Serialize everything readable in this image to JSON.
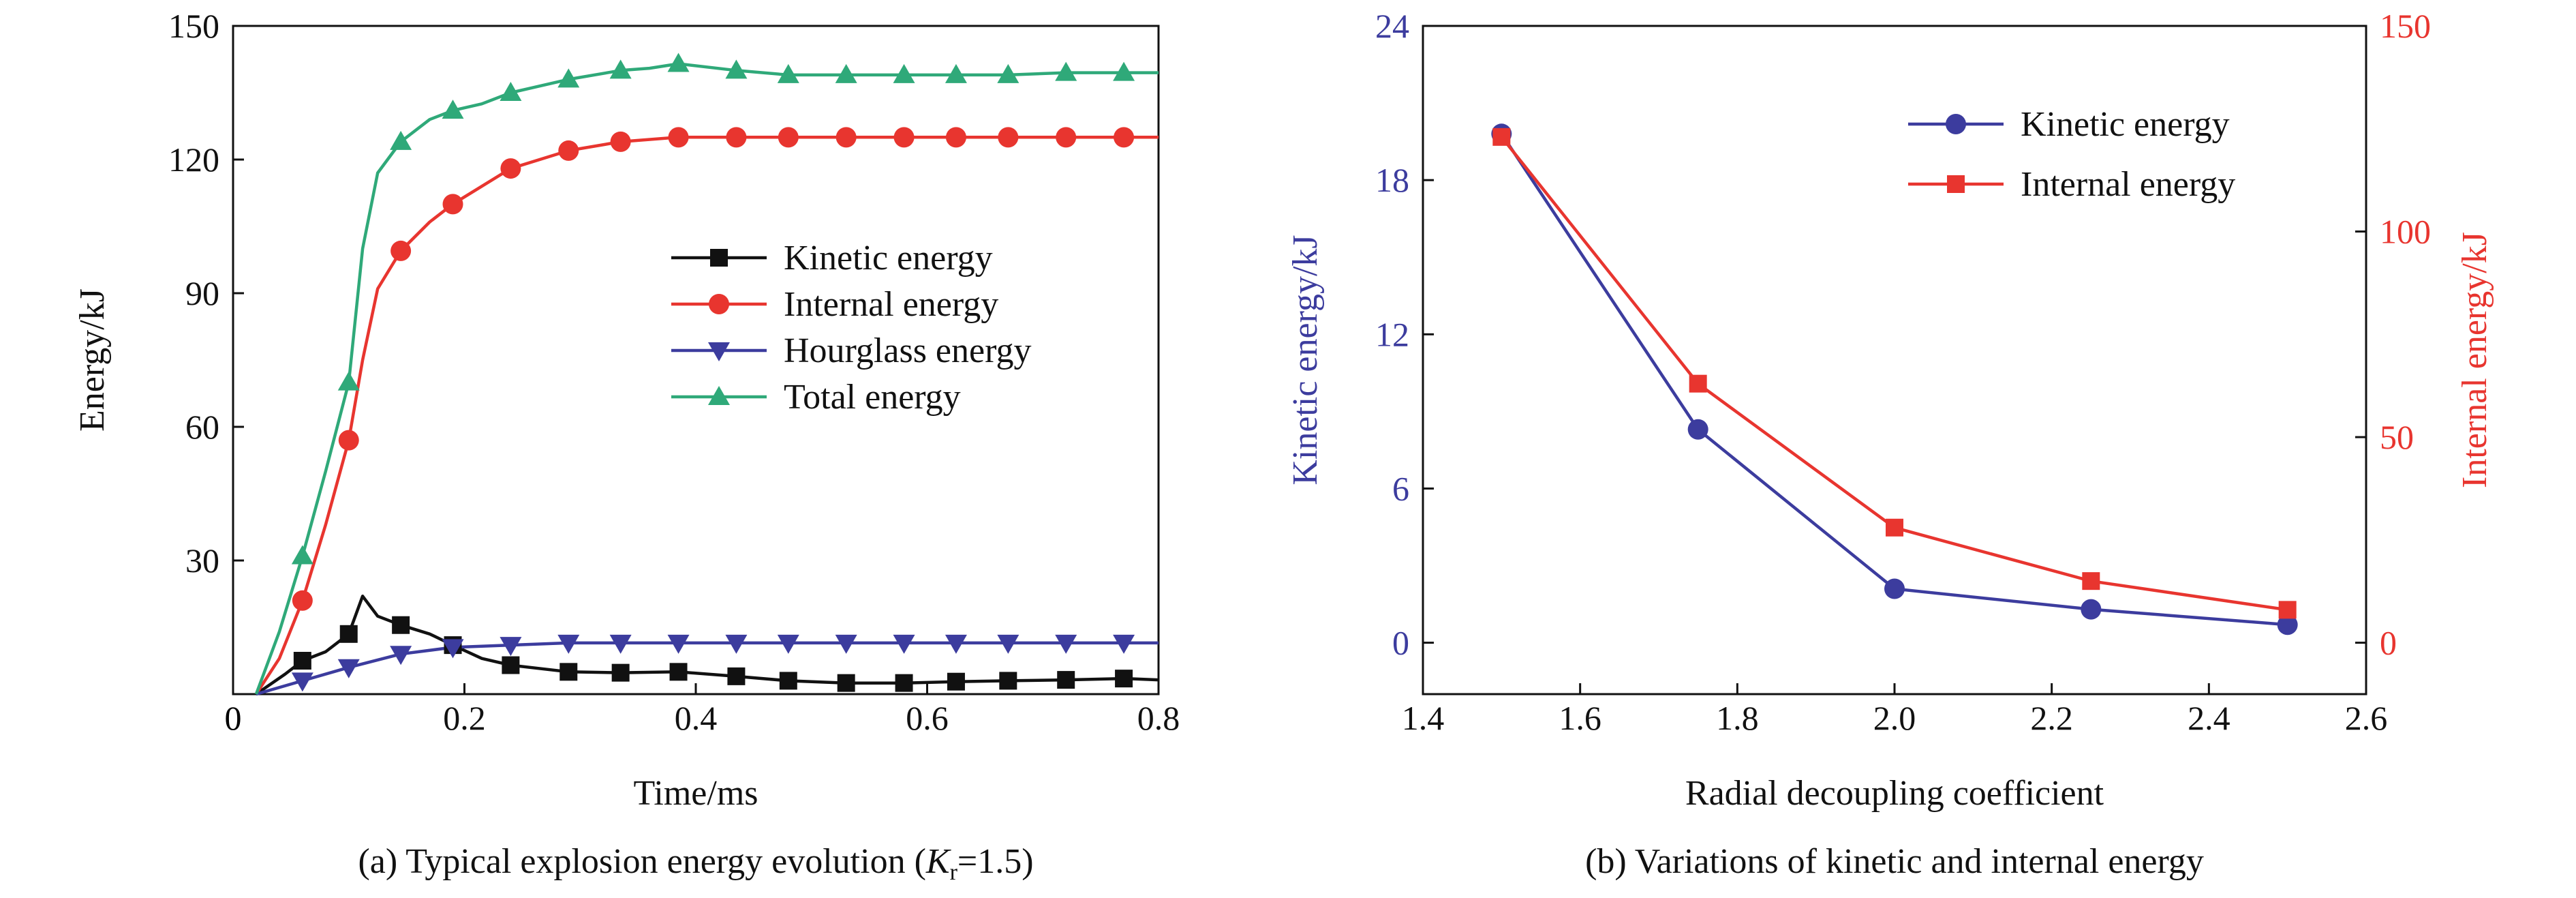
{
  "chart_data": [
    {
      "type": "line",
      "xlabel": "Time/ms",
      "ylabel": "Energy/kJ",
      "xlim": [
        0,
        0.8
      ],
      "ylim": [
        0,
        150
      ],
      "xticks": [
        "0",
        "0.2",
        "0.4",
        "0.6",
        "0.8"
      ],
      "yticks": [
        "30",
        "60",
        "90",
        "120",
        "150"
      ],
      "caption": {
        "prefix": "(a) Typical explosion energy evolution (",
        "var": "K",
        "sub": "r",
        "suffix": "=1.5)"
      },
      "legend_position": "center-right",
      "grid": false,
      "series": [
        {
          "name": "Kinetic energy",
          "color": "#111111",
          "marker": "square",
          "x": [
            0.02,
            0.045,
            0.06,
            0.08,
            0.1,
            0.112,
            0.125,
            0.145,
            0.17,
            0.19,
            0.215,
            0.24,
            0.29,
            0.335,
            0.385,
            0.435,
            0.48,
            0.53,
            0.58,
            0.625,
            0.67,
            0.72,
            0.77,
            0.8
          ],
          "y": [
            0.0,
            4.5,
            7.5,
            9.5,
            13.5,
            22.0,
            17.5,
            15.5,
            13.5,
            11.0,
            8.0,
            6.5,
            5.0,
            4.8,
            5.0,
            4.0,
            3.0,
            2.5,
            2.5,
            2.8,
            3.0,
            3.2,
            3.5,
            3.2
          ],
          "marker_x": [
            0.06,
            0.1,
            0.145,
            0.19,
            0.24,
            0.29,
            0.335,
            0.385,
            0.435,
            0.48,
            0.53,
            0.58,
            0.625,
            0.67,
            0.72,
            0.77
          ],
          "marker_y": [
            7.5,
            13.5,
            15.5,
            11.0,
            6.5,
            5.0,
            4.8,
            5.0,
            4.0,
            3.0,
            2.5,
            2.5,
            2.8,
            3.0,
            3.2,
            3.5
          ]
        },
        {
          "name": "Internal energy",
          "color": "#e8352f",
          "marker": "circle",
          "x": [
            0.02,
            0.04,
            0.06,
            0.08,
            0.1,
            0.112,
            0.125,
            0.145,
            0.17,
            0.19,
            0.215,
            0.24,
            0.29,
            0.335,
            0.385,
            0.435,
            0.48,
            0.53,
            0.58,
            0.625,
            0.67,
            0.72,
            0.77,
            0.8
          ],
          "y": [
            0.0,
            8.0,
            21.0,
            38.0,
            57.0,
            75.0,
            91.0,
            99.5,
            106.0,
            110.0,
            114.0,
            118.0,
            122.0,
            124.0,
            125.0,
            125.0,
            125.0,
            125.0,
            125.0,
            125.0,
            125.0,
            125.0,
            125.0,
            125.0
          ],
          "marker_x": [
            0.06,
            0.1,
            0.145,
            0.19,
            0.24,
            0.29,
            0.335,
            0.385,
            0.435,
            0.48,
            0.53,
            0.58,
            0.625,
            0.67,
            0.72,
            0.77
          ],
          "marker_y": [
            21.0,
            57.0,
            99.5,
            110.0,
            118.0,
            122.0,
            124.0,
            125.0,
            125.0,
            125.0,
            125.0,
            125.0,
            125.0,
            125.0,
            125.0,
            125.0
          ]
        },
        {
          "name": "Hourglass energy",
          "color": "#3c3c9e",
          "marker": "triangle-down",
          "x": [
            0.02,
            0.06,
            0.1,
            0.145,
            0.19,
            0.24,
            0.29,
            0.335,
            0.385,
            0.435,
            0.48,
            0.53,
            0.58,
            0.625,
            0.67,
            0.72,
            0.77,
            0.8
          ],
          "y": [
            0.0,
            3.0,
            6.0,
            9.0,
            10.5,
            11.0,
            11.5,
            11.5,
            11.5,
            11.5,
            11.5,
            11.5,
            11.5,
            11.5,
            11.5,
            11.5,
            11.5,
            11.5
          ],
          "marker_x": [
            0.06,
            0.1,
            0.145,
            0.19,
            0.24,
            0.29,
            0.335,
            0.385,
            0.435,
            0.48,
            0.53,
            0.58,
            0.625,
            0.67,
            0.72,
            0.77
          ],
          "marker_y": [
            3.0,
            6.0,
            9.0,
            10.5,
            11.0,
            11.5,
            11.5,
            11.5,
            11.5,
            11.5,
            11.5,
            11.5,
            11.5,
            11.5,
            11.5,
            11.5
          ]
        },
        {
          "name": "Total energy",
          "color": "#2fa979",
          "marker": "triangle-up",
          "x": [
            0.02,
            0.04,
            0.06,
            0.08,
            0.1,
            0.112,
            0.125,
            0.145,
            0.17,
            0.19,
            0.215,
            0.24,
            0.29,
            0.335,
            0.36,
            0.385,
            0.435,
            0.48,
            0.53,
            0.58,
            0.625,
            0.67,
            0.72,
            0.77,
            0.8
          ],
          "y": [
            0.0,
            14.0,
            31.0,
            50.0,
            70.0,
            100.0,
            117.0,
            124.0,
            129.0,
            131.0,
            132.5,
            135.0,
            138.0,
            140.0,
            140.5,
            141.5,
            140.0,
            139.0,
            139.0,
            139.0,
            139.0,
            139.0,
            139.5,
            139.5,
            139.5
          ],
          "marker_x": [
            0.06,
            0.1,
            0.145,
            0.19,
            0.24,
            0.29,
            0.335,
            0.385,
            0.435,
            0.48,
            0.53,
            0.58,
            0.625,
            0.67,
            0.72,
            0.77
          ],
          "marker_y": [
            31.0,
            70.0,
            124.0,
            131.0,
            135.0,
            138.0,
            140.0,
            141.5,
            140.0,
            139.0,
            139.0,
            139.0,
            139.0,
            139.0,
            139.5,
            139.5
          ]
        }
      ]
    },
    {
      "type": "line",
      "xlabel": "Radial decoupling coefficient",
      "ylabel": "Kinetic energy/kJ",
      "ylabel_right": "Internal energy/kJ",
      "xlim": [
        1.4,
        2.6
      ],
      "ylim": [
        -2,
        24
      ],
      "ylim_right": [
        -12.5,
        150
      ],
      "xticks": [
        "1.4",
        "1.6",
        "1.8",
        "2.0",
        "2.2",
        "2.4",
        "2.6"
      ],
      "yticks": [
        "0",
        "6",
        "12",
        "18",
        "24"
      ],
      "yticks_right": [
        "0",
        "50",
        "100",
        "150"
      ],
      "caption": "(b) Variations of kinetic and internal energy",
      "legend_position": "top-right",
      "grid": false,
      "left_axis_color": "#3c3c9e",
      "right_axis_color": "#e8352f",
      "series": [
        {
          "name": "Kinetic energy",
          "axis": "left",
          "color": "#3c3c9e",
          "marker": "circle",
          "x": [
            1.5,
            1.75,
            2.0,
            2.25,
            2.5
          ],
          "y": [
            19.8,
            8.3,
            2.1,
            1.3,
            0.7
          ]
        },
        {
          "name": "Internal energy",
          "axis": "right",
          "color": "#e8352f",
          "marker": "square",
          "x": [
            1.5,
            1.75,
            2.0,
            2.25,
            2.5
          ],
          "y": [
            123.0,
            63.0,
            28.0,
            15.0,
            8.0
          ]
        }
      ]
    }
  ]
}
